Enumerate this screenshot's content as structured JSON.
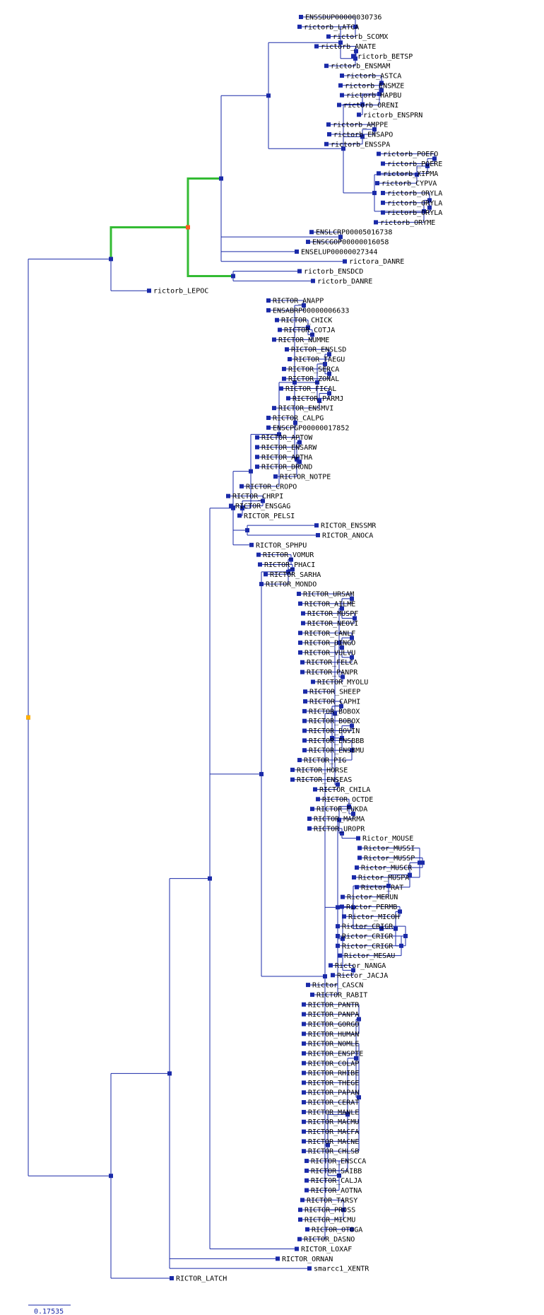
{
  "scale_label": "0.17535",
  "colors": {
    "branch": "#1a2aa8",
    "highlight": "#33bb33",
    "root_node": "#ffb000",
    "selected_node": "#ff5a1e"
  },
  "leaves": [
    [
      "ENSSDUP00000030736",
      426
    ],
    [
      "rictorb_LATCA",
      424
    ],
    [
      "rictorb_SCOMX",
      465
    ],
    [
      "rictorb_ANATE",
      448
    ],
    [
      "rictorb_BETSP",
      500
    ],
    [
      "rictorb_ENSMAM",
      462
    ],
    [
      "rictorb_ASTCA",
      484
    ],
    [
      "rictorb_ENSMZE",
      482
    ],
    [
      "rictorb_HAPBU",
      484
    ],
    [
      "rictorb_ORENI",
      480
    ],
    [
      "rictorb_ENSPRN",
      508
    ],
    [
      "rictorb_AMPPE",
      465
    ],
    [
      "rictorb_ENSAPO",
      466
    ],
    [
      "rictorb_ENSSPA",
      462
    ],
    [
      "rictorb_POEFO",
      536
    ],
    [
      "rictorb_POERE",
      542
    ],
    [
      "rictorb_XIPMA",
      536
    ],
    [
      "rictorb_CYPVA",
      534
    ],
    [
      "rictorb_ORYLA",
      542
    ],
    [
      "rictorb_ORYLA",
      542
    ],
    [
      "rictorb_ORYLA",
      542
    ],
    [
      "rictorb_ORYME",
      532
    ],
    [
      "ENSLCRP00005016738",
      441
    ],
    [
      "ENSCGOP00000016058",
      436
    ],
    [
      "ENSELUP00000027344",
      420
    ],
    [
      "rictora_DANRE",
      488
    ],
    [
      "rictorb_ENSDCD",
      424
    ],
    [
      "rictorb_DANRE",
      443
    ],
    [
      "rictorb_LEPOC",
      211
    ],
    [
      "RICTOR_ANAPP",
      380
    ],
    [
      "ENSABRP00000006633",
      380
    ],
    [
      "RICTOR_CHICK",
      392
    ],
    [
      "RICTOR_COTJA",
      396
    ],
    [
      "RICTOR_NUMME",
      388
    ],
    [
      "RICTOR_ENSLSD",
      406
    ],
    [
      "RICTOR_TAEGU",
      410
    ],
    [
      "RICTOR_SERCA",
      402
    ],
    [
      "RICTOR_ZONAL",
      402
    ],
    [
      "RICTOR_FICAL",
      398
    ],
    [
      "RICTOR_PARMJ",
      408
    ],
    [
      "RICTOR_ENSMVI",
      388
    ],
    [
      "RICTOR_CALPG",
      380
    ],
    [
      "ENSCPGP00000017852",
      380
    ],
    [
      "RICTOR_APTOW",
      364
    ],
    [
      "RICTOR_ENSARW",
      364
    ],
    [
      "RICTOR_APTHA",
      364
    ],
    [
      "RICTOR_DROND",
      364
    ],
    [
      "RICTOR_NOTPE",
      390
    ],
    [
      "RICTOR_CROPO",
      342
    ],
    [
      "RICTOR_CHRPI",
      323
    ],
    [
      "RICTOR_ENSGAG",
      327
    ],
    [
      "RICTOR_PELSI",
      339
    ],
    [
      "RICTOR_ENSSMR",
      448
    ],
    [
      "RICTOR_ANOCA",
      450
    ],
    [
      "RICTOR_SPHPU",
      356
    ],
    [
      "RICTOR_VOMUR",
      366
    ],
    [
      "RICTOR_PHACI",
      368
    ],
    [
      "RICTOR_SARHA",
      376
    ],
    [
      "RICTOR_MONDO",
      370
    ],
    [
      "RICTOR_URSAM",
      423
    ],
    [
      "RICTOR_AILME",
      425
    ],
    [
      "RICTOR_MUSPF",
      429
    ],
    [
      "RICTOR_NEOVI",
      429
    ],
    [
      "RICTOR_CANLF",
      425
    ],
    [
      "RICTOR_DINGO",
      425
    ],
    [
      "RICTOR_VULVU",
      425
    ],
    [
      "RICTOR_FELCA",
      428
    ],
    [
      "RICTOR_PANPR",
      428
    ],
    [
      "RICTOR_MYOLU",
      443
    ],
    [
      "RICTOR_SHEEP",
      432
    ],
    [
      "RICTOR_CAPHI",
      432
    ],
    [
      "RICTOR_BOBOX",
      431
    ],
    [
      "RICTOR_BOBOX",
      431
    ],
    [
      "RICTOR_BOVIN",
      431
    ],
    [
      "RICTOR_ENSBBB",
      431
    ],
    [
      "RICTOR_ENSBMU",
      431
    ],
    [
      "RICTOR_PIG",
      424
    ],
    [
      "RICTOR_HORSE",
      414
    ],
    [
      "RICTOR_ENSEAS",
      414
    ],
    [
      "RICTOR_CHILA",
      446
    ],
    [
      "RICTOR_OCTDE",
      450
    ],
    [
      "RICTOR_FUKDA",
      442
    ],
    [
      "RICTOR_MARMA",
      438
    ],
    [
      "RICTOR_UROPR",
      438
    ],
    [
      "Rictor_MOUSE",
      507
    ],
    [
      "Rictor_MUSSI",
      509
    ],
    [
      "Rictor_MUSSP",
      509
    ],
    [
      "Rictor_MUSCR",
      505
    ],
    [
      "Rictor_MUSPA",
      501
    ],
    [
      "Rictor_RAT",
      505
    ],
    [
      "Rictor_MERUN",
      485
    ],
    [
      "Rictor_PERMB",
      484
    ],
    [
      "Rictor_MICOH",
      487
    ],
    [
      "Rictor_CRIGR",
      478
    ],
    [
      "Rictor_CRIGR",
      478
    ],
    [
      "Rictor_CRIGR",
      478
    ],
    [
      "Rictor_MESAU",
      481
    ],
    [
      "Rictor_NANGA",
      468
    ],
    [
      "Rictor_JACJA",
      471
    ],
    [
      "Rictor_CASCN",
      436
    ],
    [
      "RICTOR_RABIT",
      442
    ],
    [
      "RICTOR_PANTR",
      430
    ],
    [
      "RICTOR_PANPA",
      430
    ],
    [
      "RICTOR_GORGO",
      430
    ],
    [
      "RICTOR_HUMAN",
      430
    ],
    [
      "RICTOR_NOMLE",
      430
    ],
    [
      "RICTOR_ENSPTE",
      430
    ],
    [
      "RICTOR_COLAP",
      430
    ],
    [
      "RICTOR_RHIBE",
      430
    ],
    [
      "RICTOR_THEGE",
      430
    ],
    [
      "RICTOR_PAPAN",
      430
    ],
    [
      "RICTOR_CERAT",
      430
    ],
    [
      "RICTOR_MANLE",
      430
    ],
    [
      "RICTOR_MACMU",
      430
    ],
    [
      "RICTOR_MACFA",
      430
    ],
    [
      "RICTOR_MACNE",
      430
    ],
    [
      "RICTOR_CHLSB",
      430
    ],
    [
      "RICTOR_ENSCCA",
      434
    ],
    [
      "RICTOR_SAIBB",
      434
    ],
    [
      "RICTOR_CALJA",
      434
    ],
    [
      "RICTOR_AOTNA",
      434
    ],
    [
      "RICTOR_TARSY",
      428
    ],
    [
      "RICTOR_PROSS",
      425
    ],
    [
      "RICTOR_MICMU",
      425
    ],
    [
      "RICTOR_OTOGA",
      435
    ],
    [
      "RICTOR_DASNO",
      424
    ],
    [
      "RICTOR_LOXAF",
      420
    ],
    [
      "RICTOR_ORNAN",
      393
    ],
    [
      "smarcc1_XENTR",
      438
    ],
    [
      "RICTOR_LATCH",
      243
    ]
  ]
}
